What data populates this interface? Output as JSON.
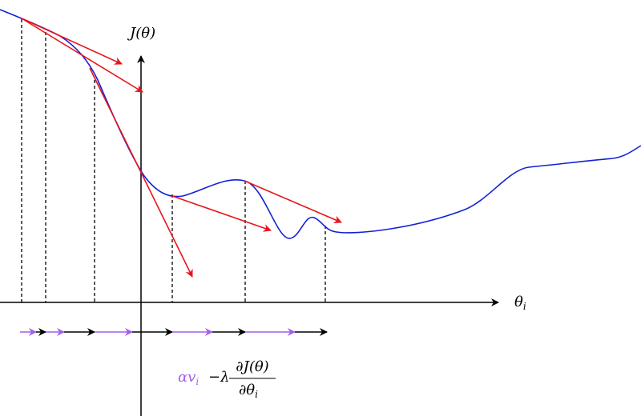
{
  "axes": {
    "y_label": "J(θ)",
    "x_label": {
      "symbol": "θ",
      "subscript": "i"
    }
  },
  "formula": {
    "momentum": {
      "symbol": "αv",
      "subscript": "i"
    },
    "operator": "−λ",
    "numerator": "∂J(θ)",
    "denominator": {
      "symbol": "∂θ",
      "subscript": "i"
    }
  }
}
